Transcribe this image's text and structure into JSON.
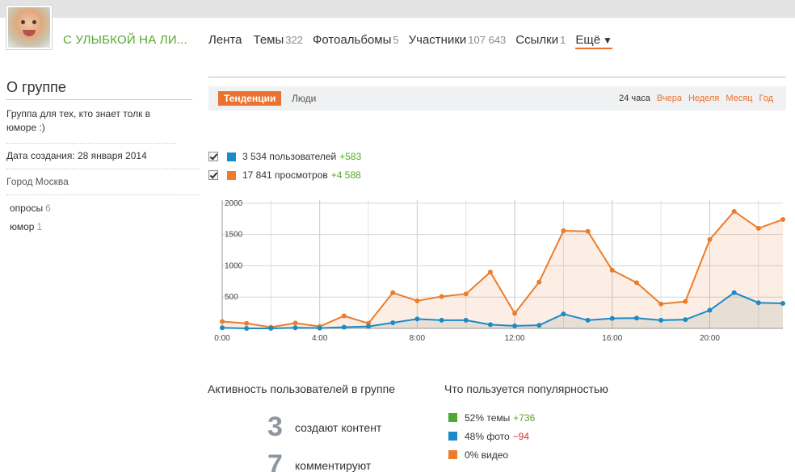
{
  "header": {
    "group_name": "С УЛЫБКОЙ НА ЛИ...",
    "avatar_icon": "baby-avatar"
  },
  "nav": [
    {
      "label": "Лента",
      "count": ""
    },
    {
      "label": "Темы",
      "count": "322"
    },
    {
      "label": "Фотоальбомы",
      "count": "5"
    },
    {
      "label": "Участники",
      "count": "107 643"
    },
    {
      "label": "Ссылки",
      "count": "1"
    }
  ],
  "nav_more": {
    "label": "Ещё",
    "icon": "caret-down-icon"
  },
  "sidebar": {
    "title": "О группе",
    "description": "Группа для тех, кто знает толк в юморе :)",
    "created": "Дата создания: 28 января 2014",
    "city": "Город Москва",
    "tags": [
      {
        "label": "опросы",
        "count": "6"
      },
      {
        "label": "юмор",
        "count": "1"
      }
    ]
  },
  "stats_tabs": {
    "active": "Тенденции",
    "people": "Люди",
    "periods": [
      {
        "label": "24 часа",
        "selected": true
      },
      {
        "label": "Вчера",
        "selected": false
      },
      {
        "label": "Неделя",
        "selected": false
      },
      {
        "label": "Месяц",
        "selected": false
      },
      {
        "label": "Год",
        "selected": false
      }
    ]
  },
  "legend": [
    {
      "text": "3 534 пользователей",
      "delta": "+583",
      "color": "#1b8bc8",
      "checked": true
    },
    {
      "text": "17 841 просмотров",
      "delta": "+4 588",
      "color": "#eb7d2b",
      "checked": true
    }
  ],
  "chart_data": {
    "type": "area",
    "x": [
      "0:00",
      "1:00",
      "2:00",
      "3:00",
      "4:00",
      "5:00",
      "6:00",
      "7:00",
      "8:00",
      "9:00",
      "10:00",
      "11:00",
      "12:00",
      "13:00",
      "14:00",
      "15:00",
      "16:00",
      "17:00",
      "18:00",
      "19:00",
      "20:00",
      "21:00",
      "22:00",
      "23:00"
    ],
    "x_tick_labels": [
      "0:00",
      "4:00",
      "8:00",
      "12:00",
      "16:00",
      "20:00"
    ],
    "y_tick_labels": [
      "2000",
      "1500",
      "1000",
      "500"
    ],
    "ylim": [
      0,
      2050
    ],
    "grid": true,
    "series": [
      {
        "color": "#eb7d2b",
        "values": [
          110,
          80,
          20,
          85,
          30,
          200,
          80,
          570,
          440,
          510,
          550,
          900,
          240,
          740,
          1560,
          1550,
          930,
          730,
          390,
          430,
          1420,
          1870,
          1600,
          1740
        ]
      },
      {
        "color": "#1b8bc8",
        "values": [
          10,
          0,
          0,
          10,
          5,
          20,
          30,
          90,
          150,
          130,
          130,
          60,
          40,
          50,
          230,
          130,
          160,
          165,
          130,
          140,
          290,
          570,
          410,
          400
        ]
      }
    ]
  },
  "activity": {
    "title": "Активность пользователей в группе",
    "rows": [
      {
        "num": "3",
        "label": "создают контент"
      },
      {
        "num": "7",
        "label": "комментируют"
      }
    ]
  },
  "popularity": {
    "title": "Что пользуется популярностью",
    "rows": [
      {
        "text": "52% темы",
        "delta": "+736",
        "dir": "up",
        "color": "#4caa2e"
      },
      {
        "text": "48% фото",
        "delta": "−94",
        "dir": "down",
        "color": "#1b8bc8"
      },
      {
        "text": "0% видео",
        "delta": "",
        "dir": "",
        "color": "#eb7d2b"
      }
    ]
  }
}
